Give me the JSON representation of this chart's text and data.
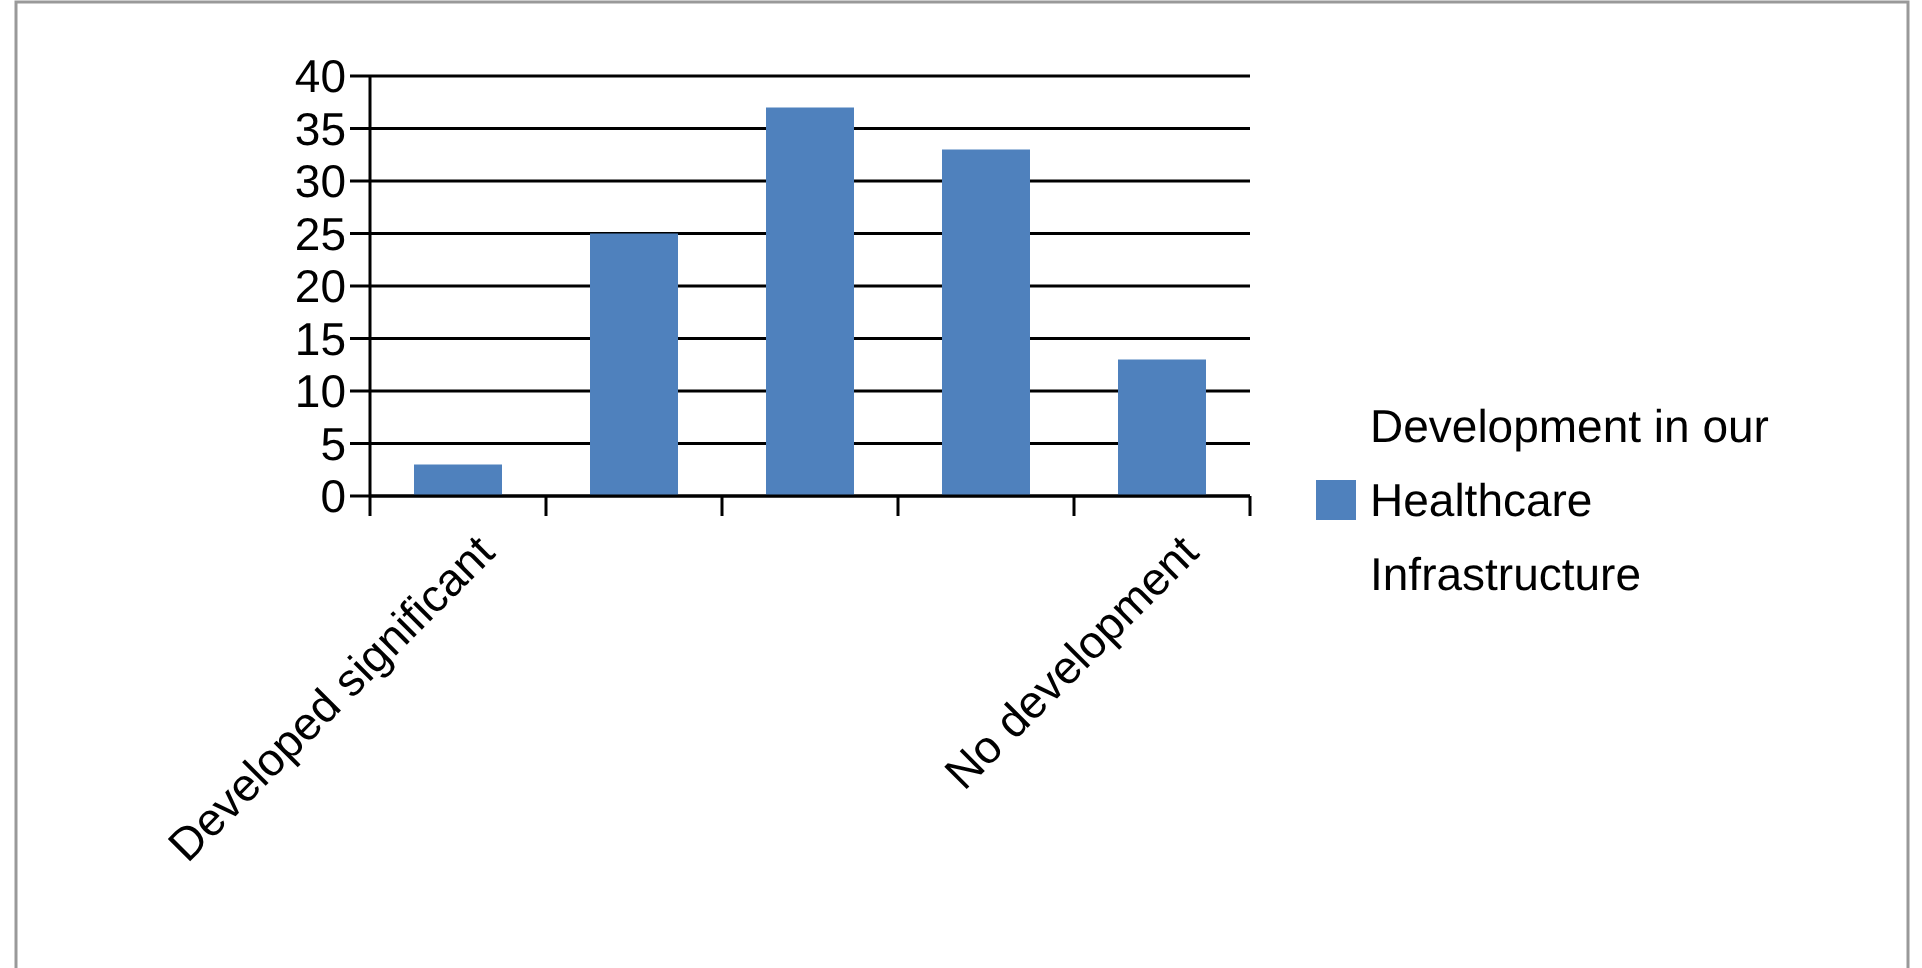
{
  "chart_data": {
    "type": "bar",
    "categories": [
      "Developed significant",
      null,
      null,
      null,
      "No development"
    ],
    "series": [
      {
        "name": "Development in our Healthcare Infrastructure",
        "color": "#4f81bd",
        "values": [
          3,
          25,
          37,
          33,
          13
        ]
      }
    ],
    "ylim": [
      0,
      40
    ],
    "yticks": [
      0,
      5,
      10,
      15,
      20,
      25,
      30,
      35,
      40
    ],
    "grid": "y",
    "legend": "right"
  }
}
